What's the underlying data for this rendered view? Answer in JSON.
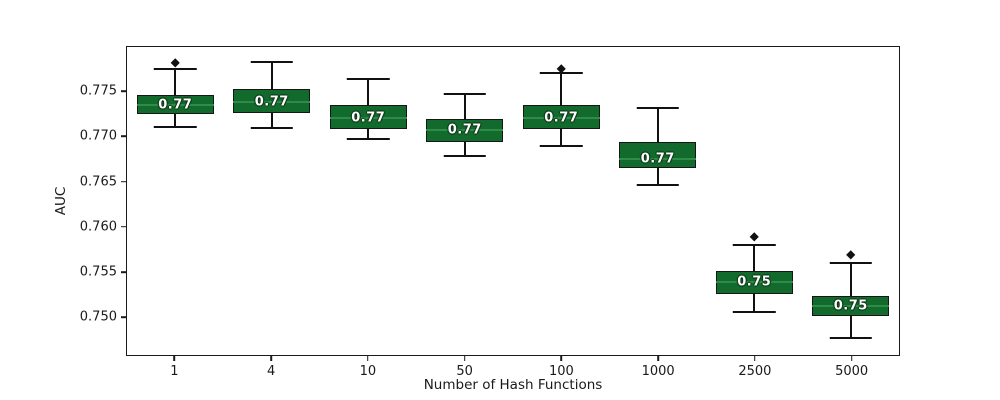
{
  "figure": {
    "background": "#ffffff"
  },
  "chart_data": {
    "type": "boxplot",
    "title": "",
    "xlabel": "Number of Hash Functions",
    "ylabel": "AUC",
    "categories": [
      "1",
      "4",
      "10",
      "50",
      "100",
      "1000",
      "2500",
      "5000"
    ],
    "ylim": [
      0.7457,
      0.78
    ],
    "grid": false,
    "legend": null,
    "yticks": [
      {
        "value": 0.75,
        "label": "0.750"
      },
      {
        "value": 0.755,
        "label": "0.755"
      },
      {
        "value": 0.76,
        "label": "0.760"
      },
      {
        "value": 0.765,
        "label": "0.765"
      },
      {
        "value": 0.77,
        "label": "0.770"
      },
      {
        "value": 0.775,
        "label": "0.775"
      }
    ],
    "colors": {
      "box_fill": "#136a2d",
      "box_edge": "#161616",
      "median_line": "#2d8c45",
      "whisker": "#111111",
      "outlier": "#111111",
      "label_text": "#ffffff",
      "axis_text": "#1a1a1a"
    },
    "outlier_glyph": "◆",
    "boxes": [
      {
        "category": "1",
        "whisker_low": 0.7711,
        "q1": 0.7725,
        "median": 0.7735,
        "q3": 0.7747,
        "whisker_high": 0.7775,
        "outliers": [
          0.7783
        ],
        "label": "0.77"
      },
      {
        "category": "4",
        "whisker_low": 0.771,
        "q1": 0.7726,
        "median": 0.7739,
        "q3": 0.7753,
        "whisker_high": 0.7783,
        "outliers": [],
        "label": "0.77"
      },
      {
        "category": "10",
        "whisker_low": 0.7698,
        "q1": 0.7709,
        "median": 0.7721,
        "q3": 0.7735,
        "whisker_high": 0.7764,
        "outliers": [],
        "label": "0.77"
      },
      {
        "category": "50",
        "whisker_low": 0.7679,
        "q1": 0.7694,
        "median": 0.7708,
        "q3": 0.772,
        "whisker_high": 0.7748,
        "outliers": [],
        "label": "0.77"
      },
      {
        "category": "100",
        "whisker_low": 0.769,
        "q1": 0.7709,
        "median": 0.7721,
        "q3": 0.7735,
        "whisker_high": 0.7771,
        "outliers": [
          0.7777
        ],
        "label": "0.77"
      },
      {
        "category": "1000",
        "whisker_low": 0.7646,
        "q1": 0.7665,
        "median": 0.7675,
        "q3": 0.7694,
        "whisker_high": 0.7732,
        "outliers": [],
        "label": "0.77"
      },
      {
        "category": "2500",
        "whisker_low": 0.7505,
        "q1": 0.7525,
        "median": 0.7538,
        "q3": 0.755,
        "whisker_high": 0.758,
        "outliers": [
          0.759
        ],
        "label": "0.75"
      },
      {
        "category": "5000",
        "whisker_low": 0.7476,
        "q1": 0.75,
        "median": 0.7512,
        "q3": 0.7523,
        "whisker_high": 0.756,
        "outliers": [
          0.7569
        ],
        "label": "0.75"
      }
    ]
  }
}
